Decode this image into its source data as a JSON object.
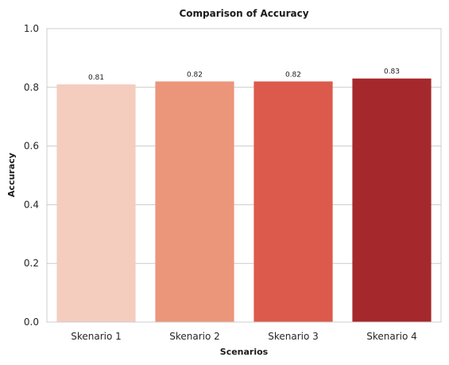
{
  "chart_data": {
    "type": "bar",
    "title": "Comparison of Accuracy",
    "xlabel": "Scenarios",
    "ylabel": "Accuracy",
    "categories": [
      "Skenario 1",
      "Skenario 2",
      "Skenario 3",
      "Skenario 4"
    ],
    "values": [
      0.81,
      0.82,
      0.82,
      0.83
    ],
    "data_labels": [
      "0.81",
      "0.82",
      "0.82",
      "0.83"
    ],
    "colors": [
      "#f4cdbf",
      "#eb967a",
      "#dc5a4b",
      "#a5282c"
    ],
    "ylim": [
      0,
      1.0
    ],
    "yticks": [
      0.0,
      0.2,
      0.4,
      0.6,
      0.8,
      1.0
    ],
    "ytick_labels": [
      "0.0",
      "0.2",
      "0.4",
      "0.6",
      "0.8",
      "1.0"
    ],
    "grid": "horizontal",
    "legend": "none"
  }
}
